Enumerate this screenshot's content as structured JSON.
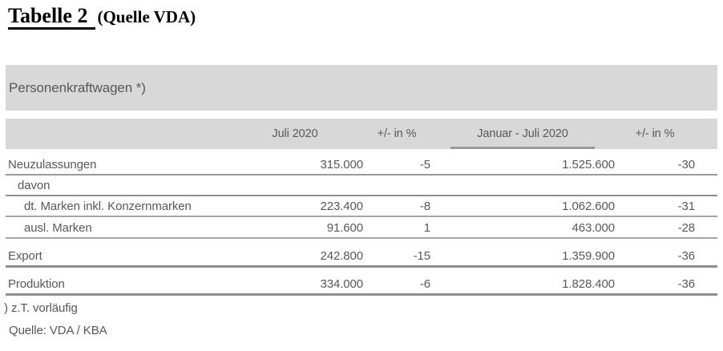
{
  "title": {
    "main": "Tabelle 2",
    "suffix": "(Quelle VDA)"
  },
  "table": {
    "section_header": "Personenkraftwagen *)",
    "columns": [
      "Juli 2020",
      "+/- in %",
      "Januar - Juli 2020",
      "+/- in %"
    ],
    "rows": [
      {
        "label": "Neuzulassungen",
        "values": [
          "315.000",
          "-5",
          "1.525.600",
          "-30"
        ]
      },
      {
        "label": "davon",
        "values": [
          "",
          "",
          "",
          ""
        ]
      },
      {
        "label": "dt. Marken inkl. Konzernmarken",
        "values": [
          "223.400",
          "-8",
          "1.062.600",
          "-31"
        ]
      },
      {
        "label": "ausl. Marken",
        "values": [
          "91.600",
          "1",
          "463.000",
          "-28"
        ]
      },
      {
        "label": "Export",
        "values": [
          "242.800",
          "-15",
          "1.359.900",
          "-36"
        ]
      },
      {
        "label": "Produktion",
        "values": [
          "334.000",
          "-6",
          "1.828.400",
          "-36"
        ]
      }
    ],
    "footnote": ") z.T. vorläufig",
    "source": "Quelle: VDA / KBA"
  },
  "colors": {
    "band_background": "#d8d8d8",
    "text": "#58585b",
    "separator": "#a5a5a5",
    "separator_strong": "#8e8e8e",
    "title_text": "#000000"
  }
}
